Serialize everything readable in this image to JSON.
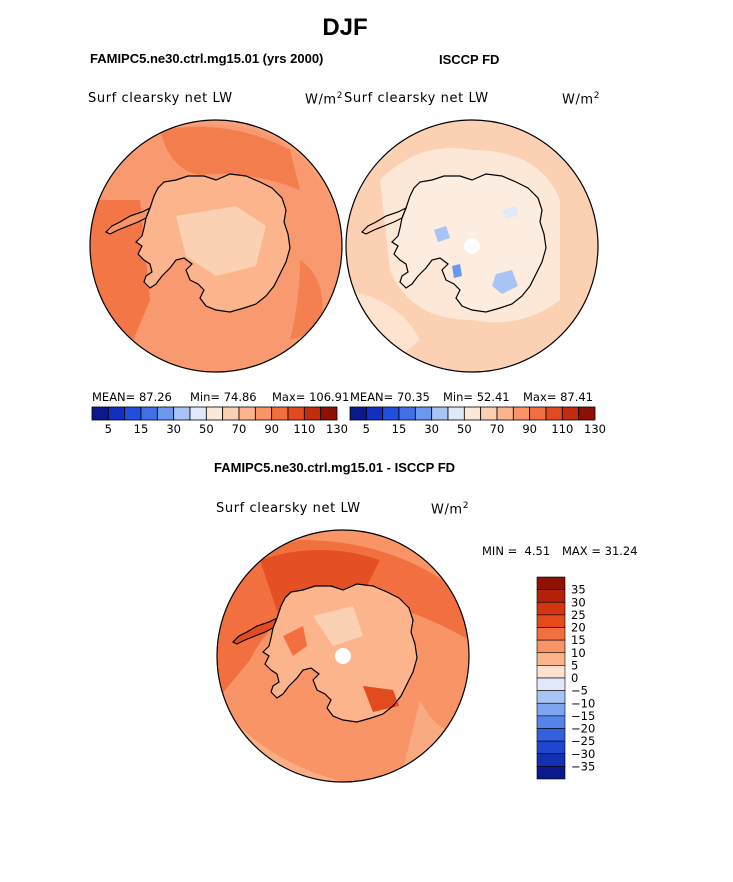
{
  "title": "DJF",
  "panels": {
    "left": {
      "case": "FAMIPC5.ne30.ctrl.mg15.01 (yrs 2000)",
      "variable": "Surf clearsky net LW",
      "units_base": "W/m",
      "units_exp": "2",
      "mean_label": "MEAN=",
      "mean": "87.26",
      "min_label": "Min=",
      "min": "74.86",
      "max_label": "Max=",
      "max": "106.91"
    },
    "right": {
      "case": "ISCCP FD",
      "variable": "Surf clearsky net LW",
      "units_base": "W/m",
      "units_exp": "2",
      "mean_label": "MEAN=",
      "mean": "70.35",
      "min_label": "Min=",
      "min": "52.41",
      "max_label": "Max=",
      "max": "87.41"
    },
    "diff": {
      "case": "FAMIPC5.ne30.ctrl.mg15.01 - ISCCP FD",
      "variable": "Surf clearsky net LW",
      "units_base": "W/m",
      "units_exp": "2",
      "minmax_label_min": "MIN =",
      "min": "4.51",
      "minmax_label_max": "MAX =",
      "max": "31.24"
    }
  },
  "chart_data": [
    {
      "type": "heatmap",
      "title": "FAMIPC5.ne30.ctrl.mg15.01 (yrs 2000)",
      "variable": "Surf clearsky net LW",
      "units": "W/m^2",
      "projection": "south-polar stereographic",
      "colorbar_levels": [
        5,
        10,
        15,
        20,
        30,
        40,
        50,
        60,
        70,
        80,
        90,
        100,
        110,
        120,
        130
      ],
      "colorbar_labels": [
        "5",
        "15",
        "30",
        "50",
        "70",
        "90",
        "110",
        "130"
      ],
      "colorbar_colors": [
        "#0a1a8c",
        "#1230c0",
        "#1f4fdc",
        "#3f70e6",
        "#6c97ee",
        "#a8c4f4",
        "#dfe9fa",
        "#fde7d7",
        "#fcd0b3",
        "#fbb48c",
        "#f89466",
        "#f2703f",
        "#e24a1f",
        "#c22d0c",
        "#8e1103"
      ],
      "mean": 87.26,
      "min": 74.86,
      "max": 106.91
    },
    {
      "type": "heatmap",
      "title": "ISCCP FD",
      "variable": "Surf clearsky net LW",
      "units": "W/m^2",
      "projection": "south-polar stereographic",
      "colorbar_levels": [
        5,
        10,
        15,
        20,
        30,
        40,
        50,
        60,
        70,
        80,
        90,
        100,
        110,
        120,
        130
      ],
      "colorbar_labels": [
        "5",
        "15",
        "30",
        "50",
        "70",
        "90",
        "110",
        "130"
      ],
      "colorbar_colors": [
        "#0a1a8c",
        "#1230c0",
        "#1f4fdc",
        "#3f70e6",
        "#6c97ee",
        "#a8c4f4",
        "#dfe9fa",
        "#fde7d7",
        "#fcd0b3",
        "#fbb48c",
        "#f89466",
        "#f2703f",
        "#e24a1f",
        "#c22d0c",
        "#8e1103"
      ],
      "mean": 70.35,
      "min": 52.41,
      "max": 87.41
    },
    {
      "type": "heatmap",
      "title": "FAMIPC5.ne30.ctrl.mg15.01 - ISCCP FD",
      "variable": "Surf clearsky net LW",
      "units": "W/m^2",
      "projection": "south-polar stereographic",
      "colorbar_labels_top_to_bottom": [
        "35",
        "30",
        "25",
        "20",
        "15",
        "10",
        "5",
        "0",
        "−5",
        "−10",
        "−15",
        "−20",
        "−25",
        "−30",
        "−35"
      ],
      "colorbar_colors_top_to_bottom": [
        "#8e1103",
        "#b32208",
        "#d3360f",
        "#e8491b",
        "#f2703f",
        "#f89466",
        "#fbb48c",
        "#fde3cf",
        "#dfe9fa",
        "#a8c4f4",
        "#7fa5f0",
        "#5684ea",
        "#3460e0",
        "#1f46cf",
        "#1230b0",
        "#0a1a8c"
      ],
      "min": 4.51,
      "max": 31.24
    }
  ],
  "colors": {
    "diff_field": "#ee7345",
    "diff_high": "#e24a1f",
    "diff_low": "#fbb48c",
    "coast": "#000000"
  }
}
